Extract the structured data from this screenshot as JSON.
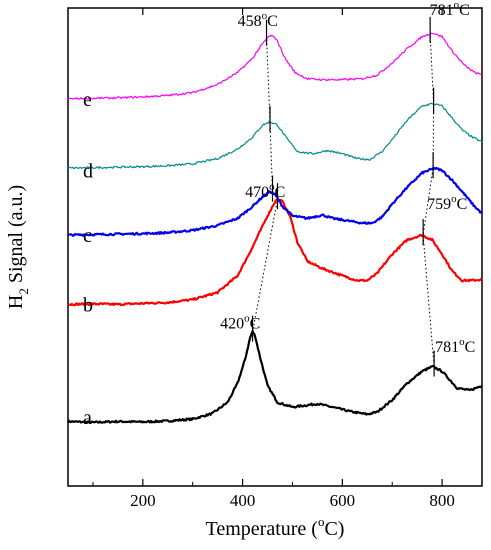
{
  "chart_data": {
    "type": "line",
    "xlabel": {
      "prefix": "Temperature (",
      "sup": "o",
      "suffix": "C)"
    },
    "ylabel": {
      "main": "H",
      "sub": "2",
      "rest": " Signal (a.u.)"
    },
    "xlim": [
      50,
      880
    ],
    "ylim": [
      0,
      1
    ],
    "xticks": [
      200,
      400,
      600,
      800
    ],
    "y_ticks_labeled": false,
    "grid": false,
    "legend": "none",
    "series": [
      {
        "name": "a",
        "color": "#000000",
        "label_x": 80,
        "label_y": 0.13,
        "points": [
          [
            50,
            0.135
          ],
          [
            100,
            0.133
          ],
          [
            150,
            0.135
          ],
          [
            200,
            0.134
          ],
          [
            250,
            0.136
          ],
          [
            300,
            0.14
          ],
          [
            340,
            0.152
          ],
          [
            370,
            0.175
          ],
          [
            390,
            0.215
          ],
          [
            405,
            0.265
          ],
          [
            415,
            0.31
          ],
          [
            420,
            0.323
          ],
          [
            425,
            0.315
          ],
          [
            435,
            0.27
          ],
          [
            450,
            0.21
          ],
          [
            470,
            0.175
          ],
          [
            500,
            0.165
          ],
          [
            550,
            0.172
          ],
          [
            580,
            0.165
          ],
          [
            620,
            0.155
          ],
          [
            650,
            0.15
          ],
          [
            670,
            0.155
          ],
          [
            700,
            0.18
          ],
          [
            730,
            0.215
          ],
          [
            760,
            0.24
          ],
          [
            781,
            0.25
          ],
          [
            800,
            0.24
          ],
          [
            830,
            0.205
          ],
          [
            855,
            0.2
          ],
          [
            880,
            0.21
          ]
        ]
      },
      {
        "name": "b",
        "color": "#ff0000",
        "label_x": 80,
        "label_y": 0.365,
        "points": [
          [
            50,
            0.38
          ],
          [
            100,
            0.381
          ],
          [
            150,
            0.38
          ],
          [
            200,
            0.382
          ],
          [
            250,
            0.384
          ],
          [
            300,
            0.39
          ],
          [
            350,
            0.405
          ],
          [
            390,
            0.44
          ],
          [
            420,
            0.5
          ],
          [
            450,
            0.565
          ],
          [
            465,
            0.595
          ],
          [
            470,
            0.6
          ],
          [
            480,
            0.595
          ],
          [
            495,
            0.565
          ],
          [
            510,
            0.51
          ],
          [
            530,
            0.47
          ],
          [
            560,
            0.455
          ],
          [
            600,
            0.44
          ],
          [
            630,
            0.43
          ],
          [
            650,
            0.43
          ],
          [
            670,
            0.445
          ],
          [
            700,
            0.485
          ],
          [
            730,
            0.515
          ],
          [
            759,
            0.525
          ],
          [
            780,
            0.515
          ],
          [
            800,
            0.485
          ],
          [
            820,
            0.45
          ],
          [
            840,
            0.43
          ],
          [
            860,
            0.43
          ],
          [
            880,
            0.432
          ]
        ]
      },
      {
        "name": "c",
        "color": "#0000ee",
        "label_x": 80,
        "label_y": 0.51,
        "points": [
          [
            50,
            0.525
          ],
          [
            100,
            0.526
          ],
          [
            150,
            0.527
          ],
          [
            200,
            0.528
          ],
          [
            250,
            0.53
          ],
          [
            300,
            0.535
          ],
          [
            350,
            0.545
          ],
          [
            390,
            0.56
          ],
          [
            420,
            0.585
          ],
          [
            440,
            0.605
          ],
          [
            455,
            0.616
          ],
          [
            465,
            0.61
          ],
          [
            480,
            0.585
          ],
          [
            500,
            0.565
          ],
          [
            530,
            0.56
          ],
          [
            560,
            0.567
          ],
          [
            580,
            0.56
          ],
          [
            610,
            0.555
          ],
          [
            640,
            0.55
          ],
          [
            660,
            0.55
          ],
          [
            680,
            0.563
          ],
          [
            700,
            0.59
          ],
          [
            730,
            0.625
          ],
          [
            760,
            0.655
          ],
          [
            785,
            0.665
          ],
          [
            800,
            0.66
          ],
          [
            820,
            0.64
          ],
          [
            845,
            0.61
          ],
          [
            865,
            0.585
          ],
          [
            880,
            0.57
          ]
        ]
      },
      {
        "name": "d",
        "color": "#008b8b",
        "label_x": 80,
        "label_y": 0.645,
        "points": [
          [
            50,
            0.665
          ],
          [
            100,
            0.666
          ],
          [
            150,
            0.667
          ],
          [
            200,
            0.668
          ],
          [
            250,
            0.67
          ],
          [
            300,
            0.674
          ],
          [
            350,
            0.685
          ],
          [
            390,
            0.705
          ],
          [
            420,
            0.73
          ],
          [
            440,
            0.755
          ],
          [
            455,
            0.762
          ],
          [
            470,
            0.755
          ],
          [
            490,
            0.725
          ],
          [
            510,
            0.7
          ],
          [
            540,
            0.695
          ],
          [
            570,
            0.702
          ],
          [
            600,
            0.695
          ],
          [
            630,
            0.685
          ],
          [
            655,
            0.683
          ],
          [
            680,
            0.7
          ],
          [
            700,
            0.725
          ],
          [
            730,
            0.765
          ],
          [
            760,
            0.795
          ],
          [
            781,
            0.8
          ],
          [
            800,
            0.795
          ],
          [
            820,
            0.77
          ],
          [
            840,
            0.745
          ],
          [
            860,
            0.73
          ],
          [
            880,
            0.72
          ]
        ]
      },
      {
        "name": "e",
        "color": "#ff00ff",
        "label_x": 80,
        "label_y": 0.795,
        "points": [
          [
            50,
            0.81
          ],
          [
            100,
            0.811
          ],
          [
            150,
            0.812
          ],
          [
            200,
            0.814
          ],
          [
            250,
            0.817
          ],
          [
            300,
            0.823
          ],
          [
            350,
            0.84
          ],
          [
            390,
            0.865
          ],
          [
            420,
            0.895
          ],
          [
            440,
            0.925
          ],
          [
            452,
            0.94
          ],
          [
            458,
            0.942
          ],
          [
            468,
            0.935
          ],
          [
            485,
            0.895
          ],
          [
            505,
            0.865
          ],
          [
            530,
            0.852
          ],
          [
            560,
            0.85
          ],
          [
            600,
            0.85
          ],
          [
            640,
            0.852
          ],
          [
            670,
            0.86
          ],
          [
            700,
            0.885
          ],
          [
            730,
            0.915
          ],
          [
            760,
            0.94
          ],
          [
            781,
            0.948
          ],
          [
            800,
            0.94
          ],
          [
            820,
            0.91
          ],
          [
            845,
            0.88
          ],
          [
            865,
            0.865
          ],
          [
            880,
            0.86
          ]
        ]
      }
    ],
    "annotations": [
      {
        "value": "458",
        "sup": "o",
        "unit": "C",
        "x": 390,
        "y": 0.962
      },
      {
        "value": "781",
        "sup": "o",
        "unit": "C",
        "x": 775,
        "y": 0.985
      },
      {
        "value": "470",
        "sup": "o",
        "unit": "C",
        "x": 405,
        "y": 0.605
      },
      {
        "value": "759",
        "sup": "o",
        "unit": "C",
        "x": 770,
        "y": 0.58
      },
      {
        "value": "420",
        "sup": "o",
        "unit": "C",
        "x": 355,
        "y": 0.33
      },
      {
        "value": "781",
        "sup": "o",
        "unit": "C",
        "x": 786,
        "y": 0.28
      }
    ],
    "peak_markers": [
      {
        "x": 448,
        "y": 0.942
      },
      {
        "x": 776,
        "y": 0.948
      },
      {
        "x": 783,
        "y": 0.8
      },
      {
        "x": 455,
        "y": 0.762
      },
      {
        "x": 460,
        "y": 0.616
      },
      {
        "x": 782,
        "y": 0.665
      },
      {
        "x": 470,
        "y": 0.6
      },
      {
        "x": 762,
        "y": 0.525
      },
      {
        "x": 420,
        "y": 0.323
      },
      {
        "x": 784,
        "y": 0.25
      }
    ],
    "guides": [
      {
        "name": "low-temp-peak-trend",
        "points": [
          [
            448,
            0.942
          ],
          [
            455,
            0.762
          ],
          [
            460,
            0.616
          ],
          [
            470,
            0.6
          ],
          [
            420,
            0.323
          ]
        ]
      },
      {
        "name": "high-temp-peak-trend",
        "points": [
          [
            776,
            0.948
          ],
          [
            783,
            0.8
          ],
          [
            782,
            0.665
          ],
          [
            762,
            0.525
          ],
          [
            784,
            0.25
          ]
        ]
      }
    ]
  }
}
